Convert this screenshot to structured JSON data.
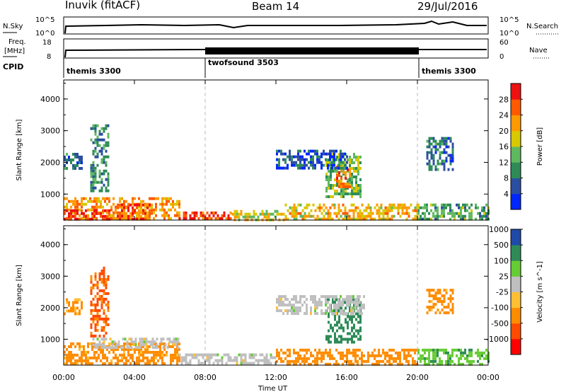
{
  "header": {
    "left": "Inuvik (fitACF)",
    "center": "Beam 14",
    "right": "29/Jul/2016"
  },
  "strip_labels": {
    "nsky": "N.Sky",
    "nsky_hi": "10^5",
    "nsky_lo": "10^0",
    "nsky_hi_r": "10^5",
    "nsky_lo_r": "10^0",
    "nsearch": "N.Search",
    "freq_top": "Freq.",
    "freq_unit": "[MHz]",
    "freq_hi": "18",
    "freq_lo": "8",
    "nave_hi": "60",
    "nave_lo": "0",
    "nave": "Nave",
    "cpid": "CPID"
  },
  "cpid_segments": [
    {
      "label": "themis 3300",
      "start": 0,
      "end": 8
    },
    {
      "label": "twofsound 3503",
      "start": 8,
      "end": 20
    },
    {
      "label": "themis 3300",
      "start": 20,
      "end": 24
    }
  ],
  "colors": {
    "power_scale": [
      "#0026ff",
      "#2b4fa0",
      "#2e8b57",
      "#5fb85f",
      "#d8c800",
      "#ff9900",
      "#ff5a00",
      "#ee1111"
    ],
    "velocity_scale": [
      "#ff0000",
      "#ff4a00",
      "#ff8c00",
      "#ffbf33",
      "#bfbfbf",
      "#66cc33",
      "#2e8b57",
      "#1f4aa8"
    ]
  },
  "chart_data": [
    {
      "type": "heatmap",
      "title": "",
      "xlabel": "",
      "ylabel": "Slant Range [km]",
      "x_ticks": [
        "00:00",
        "04:00",
        "08:00",
        "12:00",
        "16:00",
        "20:00",
        "00:00"
      ],
      "xlim": [
        0,
        24
      ],
      "ylim": [
        180,
        4600
      ],
      "y_ticks": [
        "1000",
        "2000",
        "3000",
        "4000"
      ],
      "colorbar_label": "Power [dB]",
      "colorbar_ticks": [
        "4",
        "8",
        "12",
        "16",
        "20",
        "24",
        "28"
      ],
      "colorbar_range": [
        0,
        32
      ],
      "regions": [
        {
          "t0": 0.0,
          "t1": 6.5,
          "r0": 200,
          "r1": 900,
          "value": 22
        },
        {
          "t0": 0.0,
          "t1": 2.6,
          "r0": 200,
          "r1": 520,
          "value": 30
        },
        {
          "t0": 3.0,
          "t1": 5.0,
          "r0": 250,
          "r1": 700,
          "value": 26
        },
        {
          "t0": 1.5,
          "t1": 2.5,
          "r0": 1100,
          "r1": 3200,
          "value": 10
        },
        {
          "t0": 0.0,
          "t1": 1.0,
          "r0": 1800,
          "r1": 2300,
          "value": 8
        },
        {
          "t0": 6.5,
          "t1": 9.5,
          "r0": 200,
          "r1": 450,
          "value": 28
        },
        {
          "t0": 9.5,
          "t1": 12.5,
          "r0": 200,
          "r1": 500,
          "value": 18
        },
        {
          "t0": 12.5,
          "t1": 20.0,
          "r0": 200,
          "r1": 700,
          "value": 20
        },
        {
          "t0": 14.8,
          "t1": 16.8,
          "r0": 900,
          "r1": 2300,
          "value": 14
        },
        {
          "t0": 15.4,
          "t1": 16.2,
          "r0": 1200,
          "r1": 1900,
          "value": 24
        },
        {
          "t0": 12.0,
          "t1": 16.0,
          "r0": 1800,
          "r1": 2400,
          "value": 6
        },
        {
          "t0": 20.0,
          "t1": 24.0,
          "r0": 200,
          "r1": 700,
          "value": 12
        },
        {
          "t0": 20.5,
          "t1": 22.0,
          "r0": 1800,
          "r1": 2800,
          "value": 8
        }
      ]
    },
    {
      "type": "heatmap",
      "title": "",
      "xlabel": "Time UT",
      "ylabel": "Slant Range [km]",
      "x_ticks": [
        "00:00",
        "04:00",
        "08:00",
        "12:00",
        "16:00",
        "20:00",
        "00:00"
      ],
      "xlim": [
        0,
        24
      ],
      "ylim": [
        180,
        4600
      ],
      "y_ticks": [
        "1000",
        "2000",
        "3000",
        "4000"
      ],
      "colorbar_label": "Velocity [m s^-1]",
      "colorbar_ticks": [
        "-1000",
        "-500",
        "-100",
        "-25",
        "25",
        "100",
        "500",
        "1000"
      ],
      "colorbar_range": [
        -1500,
        1500
      ],
      "regions": [
        {
          "t0": 0.0,
          "t1": 6.5,
          "r0": 200,
          "r1": 900,
          "value": -150
        },
        {
          "t0": 1.5,
          "t1": 6.5,
          "r0": 750,
          "r1": 1050,
          "value": 0
        },
        {
          "t0": 1.5,
          "t1": 2.5,
          "r0": 1100,
          "r1": 3300,
          "value": -600
        },
        {
          "t0": 0.0,
          "t1": 1.0,
          "r0": 1800,
          "r1": 2300,
          "value": -120
        },
        {
          "t0": 6.5,
          "t1": 12.0,
          "r0": 200,
          "r1": 550,
          "value": 0
        },
        {
          "t0": 12.0,
          "t1": 20.0,
          "r0": 200,
          "r1": 700,
          "value": -200
        },
        {
          "t0": 14.8,
          "t1": 16.8,
          "r0": 900,
          "r1": 2300,
          "value": 300
        },
        {
          "t0": 12.0,
          "t1": 17.0,
          "r0": 1800,
          "r1": 2400,
          "value": 0
        },
        {
          "t0": 20.0,
          "t1": 24.0,
          "r0": 200,
          "r1": 700,
          "value": 80
        },
        {
          "t0": 20.5,
          "t1": 22.0,
          "r0": 1800,
          "r1": 2600,
          "value": -150
        }
      ]
    }
  ]
}
